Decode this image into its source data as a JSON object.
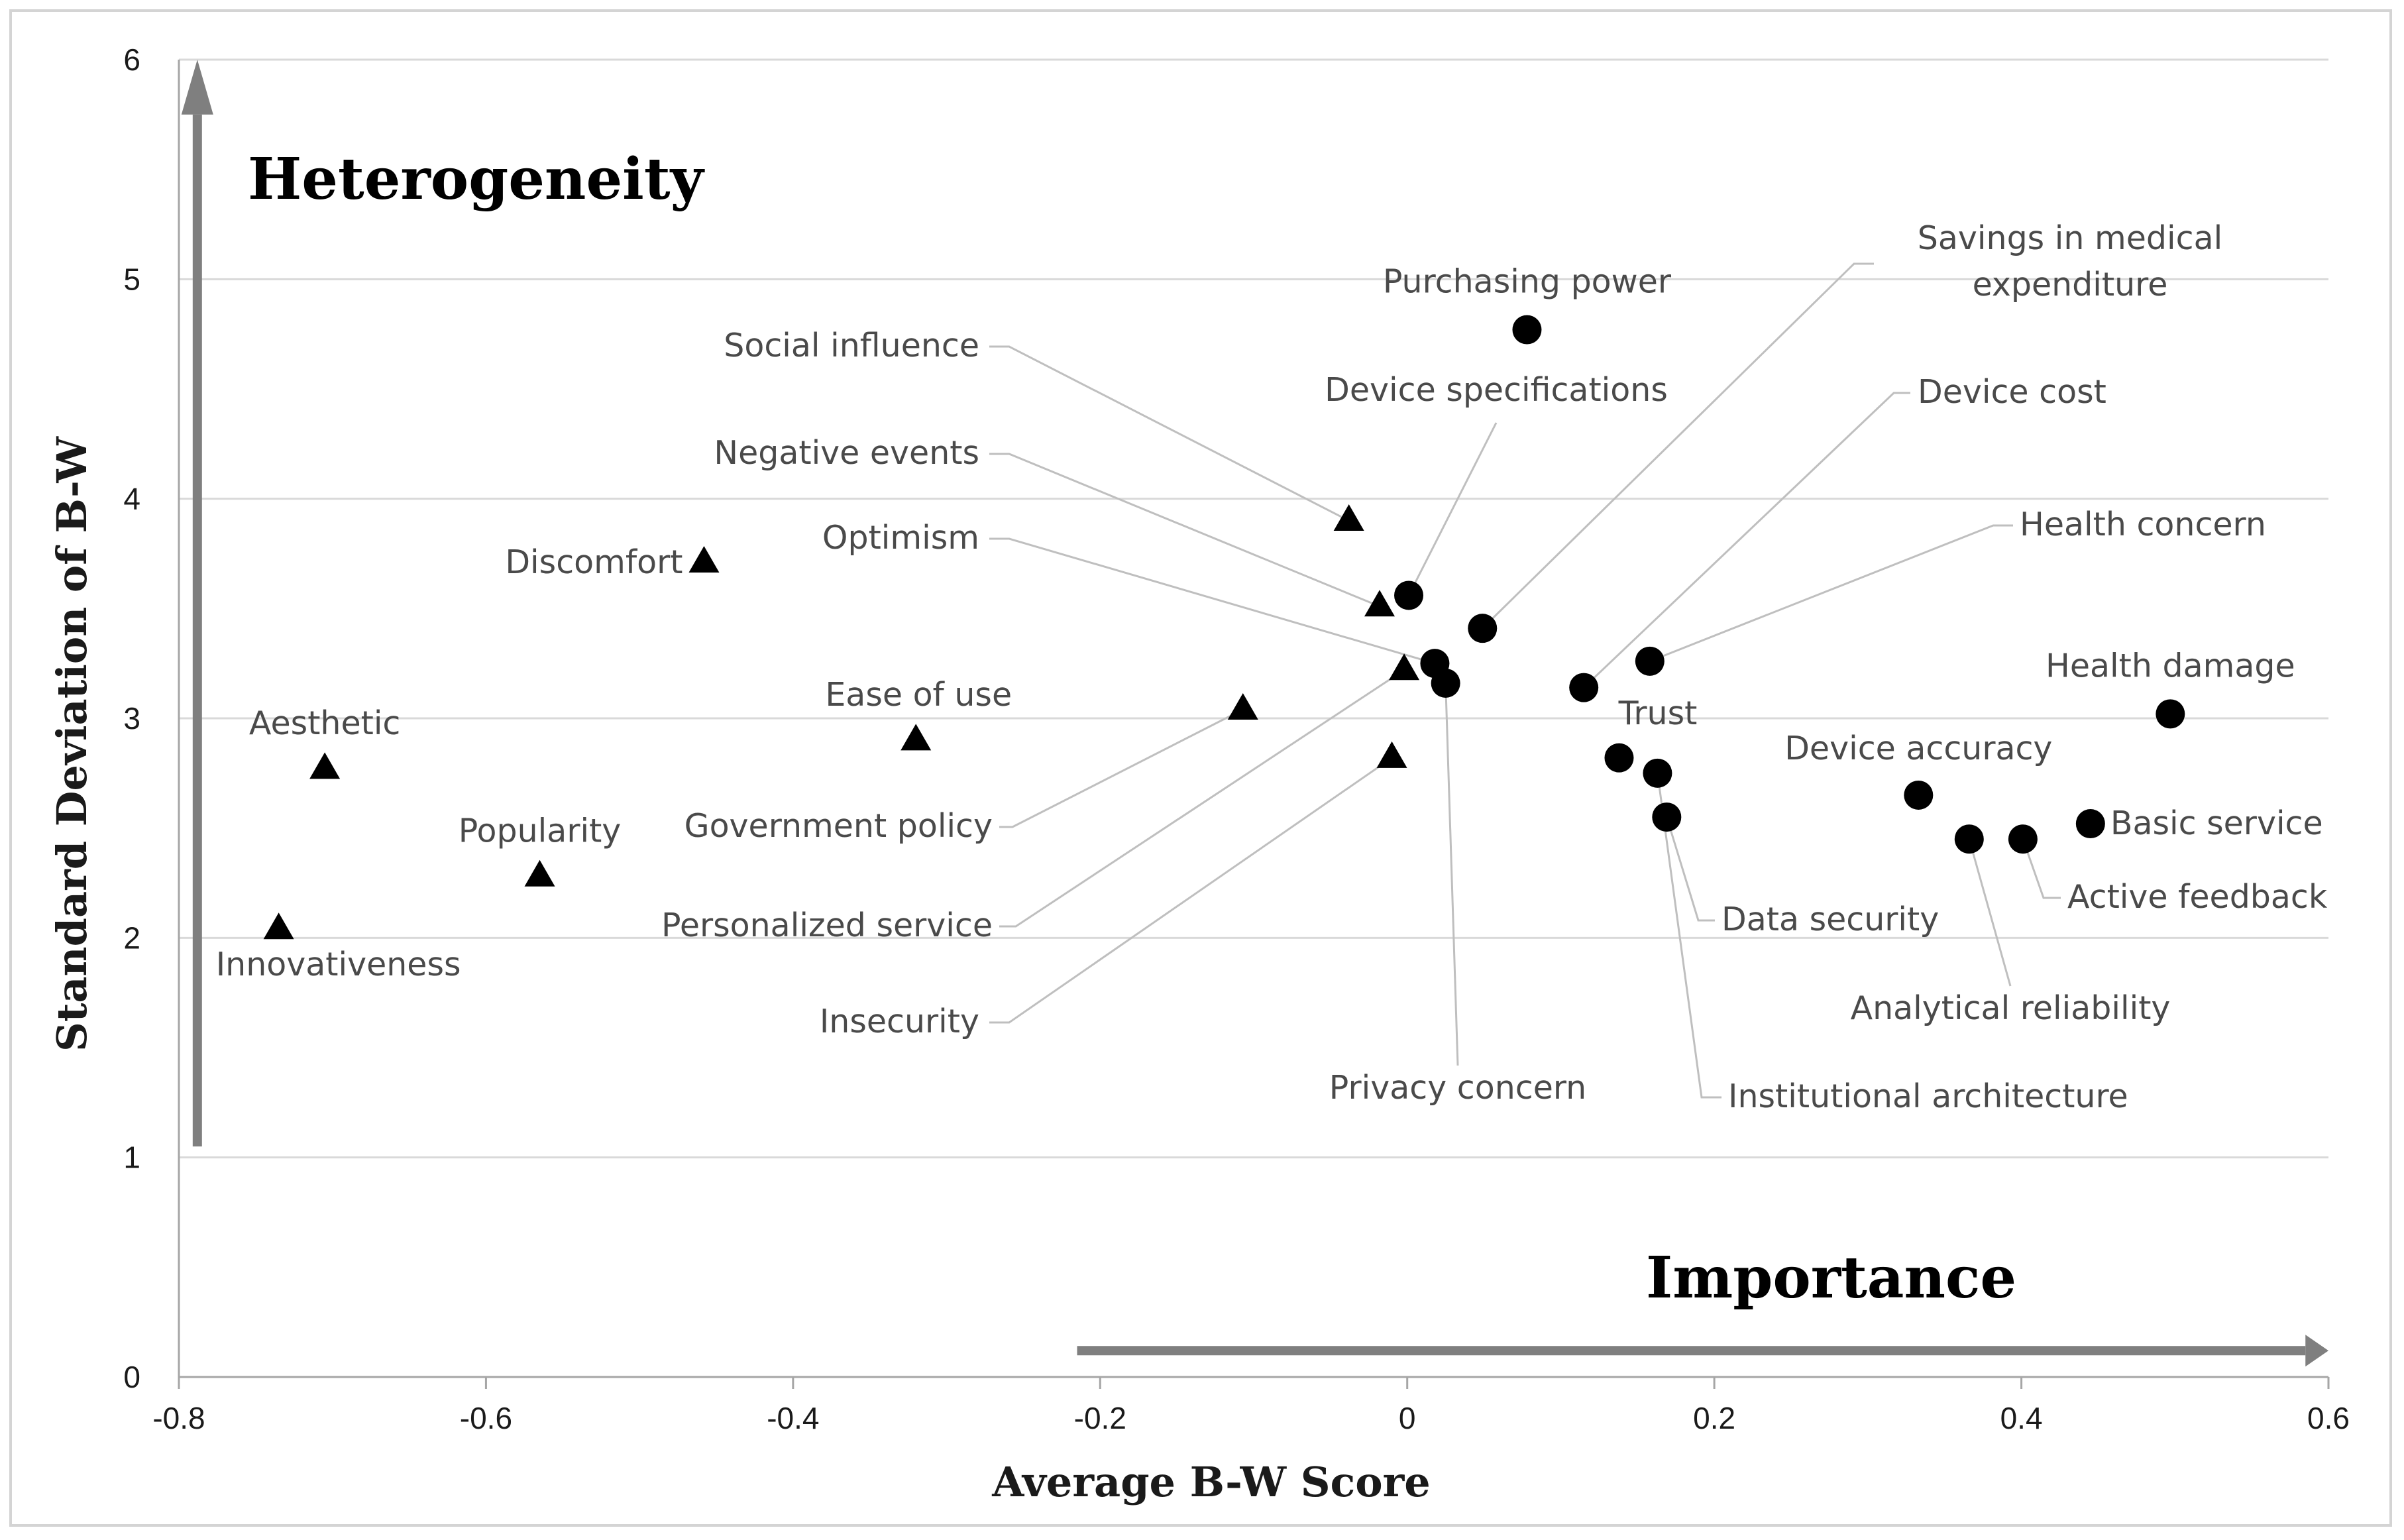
{
  "chart_data": {
    "type": "scatter",
    "xlabel": "Average B-W Score",
    "ylabel": "Standard Deviation of B-W",
    "xlim": [
      -0.8,
      0.6
    ],
    "ylim": [
      0,
      6
    ],
    "xticks": [
      "-0.8",
      "-0.6",
      "-0.4",
      "-0.2",
      "0",
      "0.2",
      "0.4",
      "0.6"
    ],
    "yticks": [
      "0",
      "1",
      "2",
      "3",
      "4",
      "5",
      "6"
    ],
    "grid": "horizontal",
    "annotations": {
      "heterogeneity": "Heterogeneity",
      "importance": "Importance"
    },
    "series": [
      {
        "name": "triangle",
        "marker": "triangle",
        "points": [
          {
            "label": "Aesthetic",
            "x": -0.705,
            "y": 2.77
          },
          {
            "label": "Innovativeness",
            "x": -0.735,
            "y": 2.04
          },
          {
            "label": "Popularity",
            "x": -0.565,
            "y": 2.28
          },
          {
            "label": "Discomfort",
            "x": -0.458,
            "y": 3.71
          },
          {
            "label": "Ease of use",
            "x": -0.32,
            "y": 2.9
          },
          {
            "label": "Government policy",
            "x": -0.107,
            "y": 3.04
          },
          {
            "label": "Social influence",
            "x": -0.038,
            "y": 3.9
          },
          {
            "label": "Negative events",
            "x": -0.018,
            "y": 3.51
          },
          {
            "label": "Personalized service",
            "x": -0.002,
            "y": 3.22
          },
          {
            "label": "Insecurity",
            "x": -0.01,
            "y": 2.82
          }
        ]
      },
      {
        "name": "circle",
        "marker": "circle",
        "points": [
          {
            "label": "Purchasing power",
            "x": 0.078,
            "y": 4.77
          },
          {
            "label": "Device specifications",
            "x": 0.001,
            "y": 3.56
          },
          {
            "label": "Savings in medical expenditure",
            "x": 0.049,
            "y": 3.41
          },
          {
            "label": "Optimism",
            "x": 0.018,
            "y": 3.25
          },
          {
            "label": "Privacy concern",
            "x": 0.025,
            "y": 3.16
          },
          {
            "label": "Device cost",
            "x": 0.115,
            "y": 3.14
          },
          {
            "label": "Health concern",
            "x": 0.158,
            "y": 3.26
          },
          {
            "label": "Trust",
            "x": 0.138,
            "y": 2.82
          },
          {
            "label": "Institutional architecture",
            "x": 0.163,
            "y": 2.75
          },
          {
            "label": "Data security",
            "x": 0.169,
            "y": 2.55
          },
          {
            "label": "Device accuracy",
            "x": 0.333,
            "y": 2.65
          },
          {
            "label": "Analytical reliability",
            "x": 0.366,
            "y": 2.45
          },
          {
            "label": "Active feedback",
            "x": 0.401,
            "y": 2.45
          },
          {
            "label": "Basic service",
            "x": 0.445,
            "y": 2.52
          },
          {
            "label": "Health damage",
            "x": 0.497,
            "y": 3.02
          }
        ]
      }
    ]
  }
}
